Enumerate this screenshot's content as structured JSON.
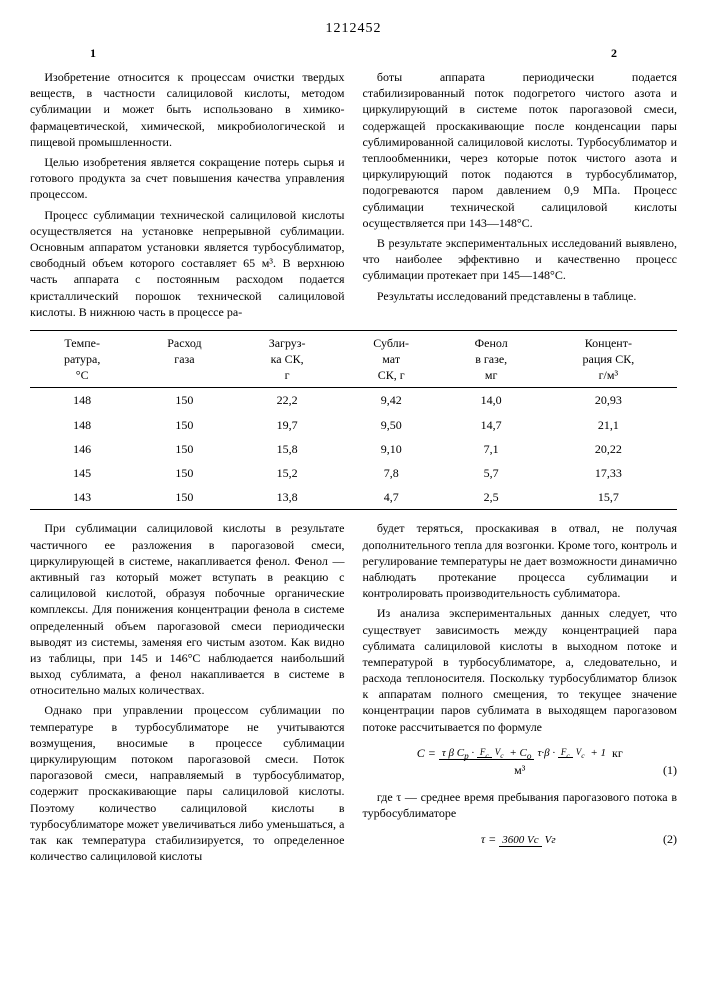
{
  "patent_number": "1212452",
  "page_left": "1",
  "page_right": "2",
  "top_block": {
    "left_paragraphs": [
      "Изобретение относится к процессам очистки твердых веществ, в частности салициловой кислоты, методом сублимации и может быть использовано в химико-фармацевтической, химической, микробиологической и пищевой промышленности.",
      "Целью изобретения является сокращение потерь сырья и готового продукта за счет повышения качества управления процессом.",
      "Процесс сублимации технической салициловой кислоты осуществляется на установке непрерывной сублимации. Основным аппаратом установки является турбосублиматор, свободный объем которого составляет 65 м³. В верхнюю часть аппарата с постоянным расходом подается кристаллический порошок технической салициловой кислоты. В нижнюю часть в процессе ра-"
    ],
    "right_paragraphs": [
      "боты аппарата периодически подается стабилизированный поток подогретого чистого азота и циркулирующий в системе поток парогазовой смеси, содержащей проскакивающие после конденсации пары сублимированной салициловой кислоты. Турбосублиматор и теплообменники, через которые поток чистого азота и циркулирующий поток подаются в турбосублиматор, подогреваются паром давлением 0,9 МПа. Процесс сублимации технической салициловой кислоты осуществляется при 143—148°С.",
      "В результате экспериментальных исследований выявлено, что наиболее эффективно и качественно процесс сублимации протекает при 145—148°С.",
      "Результаты исследований представлены в таблице."
    ]
  },
  "table": {
    "headers": [
      "Темпе-\nратура,\n°С",
      "Расход\nгаза",
      "Загруз-\nка СК,\nг",
      "Субли-\nмат\nСК, г",
      "Фенол\nв газе,\nмг",
      "Концент-\nрация СК,\nг/м³"
    ],
    "rows": [
      [
        "148",
        "150",
        "22,2",
        "9,42",
        "14,0",
        "20,93"
      ],
      [
        "148",
        "150",
        "19,7",
        "9,50",
        "14,7",
        "21,1"
      ],
      [
        "146",
        "150",
        "15,8",
        "9,10",
        "7,1",
        "20,22"
      ],
      [
        "145",
        "150",
        "15,2",
        "7,8",
        "5,7",
        "17,33"
      ],
      [
        "143",
        "150",
        "13,8",
        "4,7",
        "2,5",
        "15,7"
      ]
    ]
  },
  "bottom_block": {
    "left_paragraphs": [
      "При сублимации салициловой кислоты в результате частичного ее разложения в парогазовой смеси, циркулирующей в системе, накапливается фенол. Фенол — активный газ который может вступать в реакцию с салициловой кислотой, образуя побочные органические комплексы. Для понижения концентрации фенола в системе определенный объем парогазовой смеси периодически выводят из системы, заменяя его чистым азотом. Как видно из таблицы, при 145 и 146°С наблюдается наибольший выход сублимата, а фенол накапливается в системе в относительно малых количествах.",
      "Однако при управлении процессом сублимации по температуре в турбосублиматоре не учитываются возмущения, вносимые в процессе сублимации циркулирующим потоком парогазовой смеси. Поток парогазовой смеси, направляемый в турбосублиматор, содержит проскакивающие пары салициловой кислоты. Поэтому количество салициловой кислоты в турбосублиматоре может увеличиваться либо уменьшаться, а так как температура стабилизируется, то определенное количество салициловой кислоты"
    ],
    "right_paragraphs": [
      "будет теряться, проскакивая в отвал, не получая дополнительного тепла для возгонки. Кроме того, контроль и регулирование температуры не дает возможности динамично наблюдать протекание процесса сублимации и контролировать производительность сублиматора.",
      "Из анализа экспериментальных данных следует, что существует зависимость между концентрацией пара сублимата салициловой кислоты в выходном потоке и температурой в турбосублиматоре, а, следовательно, и расхода теплоносителя. Поскольку турбосублиматор близок к аппаратам полного смещения, то текущее значение концентрации паров сублимата в выходящем парогазовом потоке рассчитывается по формуле"
    ],
    "formula1_text": "С =",
    "formula1_unit": "кг / м³",
    "formula1_num": "(1)",
    "where_text": "где τ — среднее время пребывания парогазового потока в турбосублиматоре",
    "formula2_lhs": "τ =",
    "formula2_num_text": "3600 Vс",
    "formula2_den_text": "Vг",
    "formula2_num": "(2)"
  }
}
